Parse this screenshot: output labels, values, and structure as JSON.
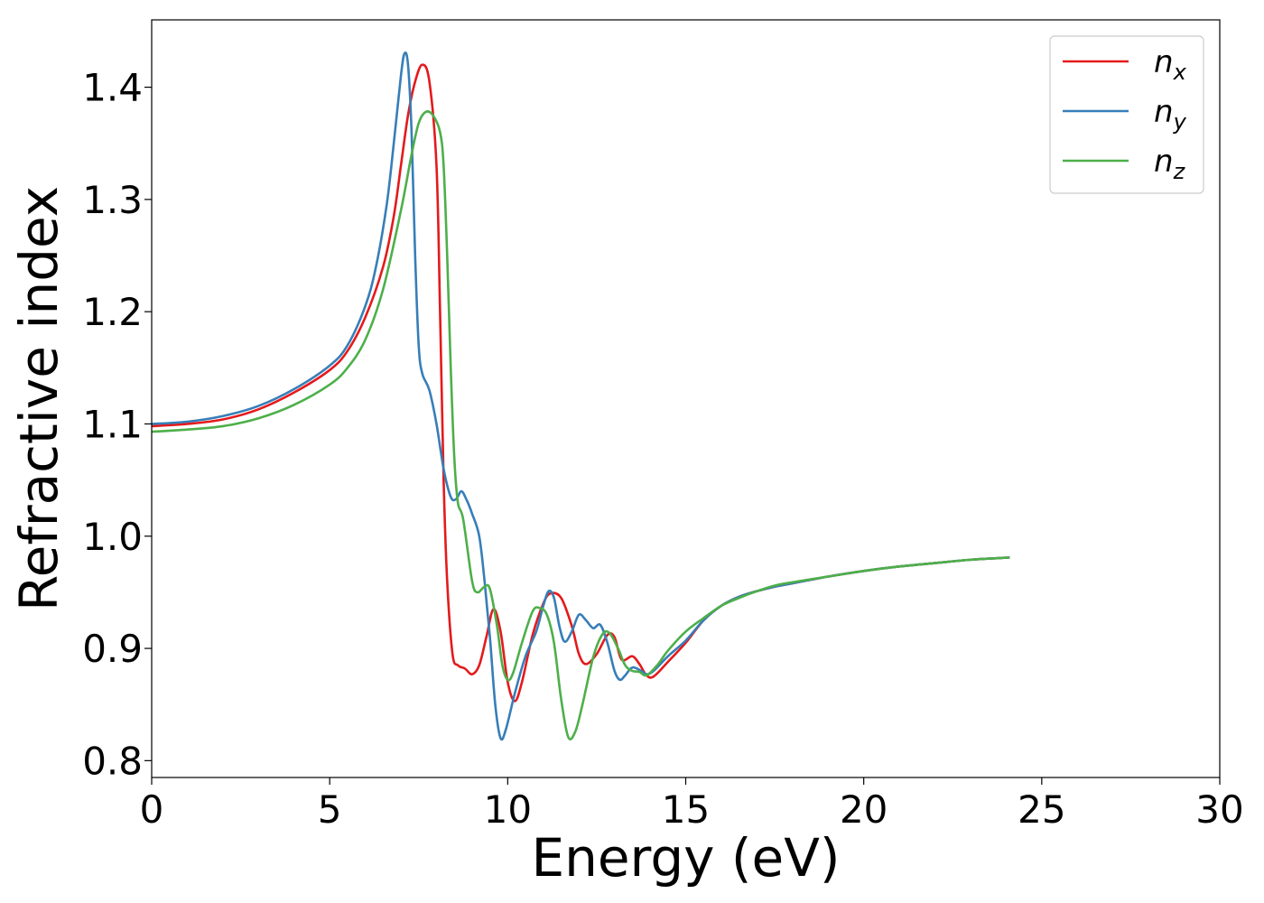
{
  "chart_data": {
    "type": "line",
    "title": "",
    "xlabel": "Energy (eV)",
    "ylabel": "Refractive index",
    "xlim": [
      0,
      30
    ],
    "ylim": [
      0.785,
      1.46
    ],
    "xticks": [
      0,
      5,
      10,
      15,
      20,
      25,
      30
    ],
    "xtick_labels": [
      "0",
      "5",
      "10",
      "15",
      "20",
      "25",
      "30"
    ],
    "yticks": [
      0.8,
      0.9,
      1.0,
      1.1,
      1.2,
      1.3,
      1.4
    ],
    "ytick_labels": [
      "0.8",
      "0.9",
      "1.0",
      "1.1",
      "1.2",
      "1.3",
      "1.4"
    ],
    "grid": false,
    "legend_position": "top-right",
    "series": [
      {
        "name": "n_x",
        "label_main": "n",
        "label_sub": "x",
        "color": "#e41a1c",
        "points": [
          [
            0,
            1.098
          ],
          [
            1,
            1.1
          ],
          [
            2,
            1.104
          ],
          [
            3,
            1.113
          ],
          [
            4,
            1.128
          ],
          [
            5,
            1.148
          ],
          [
            5.5,
            1.165
          ],
          [
            6,
            1.195
          ],
          [
            6.5,
            1.24
          ],
          [
            6.8,
            1.285
          ],
          [
            7.0,
            1.33
          ],
          [
            7.2,
            1.375
          ],
          [
            7.4,
            1.405
          ],
          [
            7.6,
            1.42
          ],
          [
            7.8,
            1.405
          ],
          [
            8.0,
            1.33
          ],
          [
            8.1,
            1.2
          ],
          [
            8.2,
            1.05
          ],
          [
            8.3,
            0.96
          ],
          [
            8.45,
            0.895
          ],
          [
            8.6,
            0.885
          ],
          [
            8.8,
            0.882
          ],
          [
            9.0,
            0.877
          ],
          [
            9.2,
            0.885
          ],
          [
            9.4,
            0.91
          ],
          [
            9.6,
            0.935
          ],
          [
            9.8,
            0.915
          ],
          [
            10.0,
            0.87
          ],
          [
            10.2,
            0.853
          ],
          [
            10.4,
            0.87
          ],
          [
            10.7,
            0.912
          ],
          [
            11.0,
            0.94
          ],
          [
            11.2,
            0.949
          ],
          [
            11.5,
            0.945
          ],
          [
            11.8,
            0.92
          ],
          [
            12.0,
            0.895
          ],
          [
            12.2,
            0.886
          ],
          [
            12.5,
            0.895
          ],
          [
            12.8,
            0.912
          ],
          [
            13.0,
            0.91
          ],
          [
            13.2,
            0.89
          ],
          [
            13.5,
            0.893
          ],
          [
            13.7,
            0.886
          ],
          [
            13.9,
            0.876
          ],
          [
            14.1,
            0.875
          ],
          [
            14.5,
            0.888
          ],
          [
            15,
            0.905
          ],
          [
            15.5,
            0.925
          ],
          [
            16,
            0.938
          ],
          [
            16.5,
            0.946
          ],
          [
            17,
            0.951
          ],
          [
            17.5,
            0.955
          ],
          [
            18,
            0.958
          ],
          [
            19,
            0.964
          ],
          [
            20,
            0.969
          ],
          [
            21,
            0.973
          ],
          [
            22,
            0.976
          ],
          [
            23,
            0.979
          ],
          [
            24.1,
            0.981
          ]
        ]
      },
      {
        "name": "n_y",
        "label_main": "n",
        "label_sub": "y",
        "color": "#377eb8",
        "points": [
          [
            0,
            1.1
          ],
          [
            1,
            1.102
          ],
          [
            2,
            1.107
          ],
          [
            3,
            1.116
          ],
          [
            4,
            1.131
          ],
          [
            5,
            1.152
          ],
          [
            5.5,
            1.17
          ],
          [
            6,
            1.205
          ],
          [
            6.3,
            1.24
          ],
          [
            6.6,
            1.295
          ],
          [
            6.8,
            1.35
          ],
          [
            7.0,
            1.41
          ],
          [
            7.1,
            1.43
          ],
          [
            7.2,
            1.42
          ],
          [
            7.3,
            1.36
          ],
          [
            7.4,
            1.25
          ],
          [
            7.5,
            1.17
          ],
          [
            7.6,
            1.145
          ],
          [
            7.8,
            1.13
          ],
          [
            8.0,
            1.1
          ],
          [
            8.2,
            1.06
          ],
          [
            8.4,
            1.035
          ],
          [
            8.55,
            1.033
          ],
          [
            8.7,
            1.04
          ],
          [
            8.85,
            1.032
          ],
          [
            9.0,
            1.02
          ],
          [
            9.2,
            1.0
          ],
          [
            9.35,
            0.96
          ],
          [
            9.5,
            0.91
          ],
          [
            9.65,
            0.85
          ],
          [
            9.8,
            0.82
          ],
          [
            9.95,
            0.828
          ],
          [
            10.2,
            0.86
          ],
          [
            10.5,
            0.893
          ],
          [
            10.8,
            0.915
          ],
          [
            11.0,
            0.938
          ],
          [
            11.15,
            0.951
          ],
          [
            11.3,
            0.945
          ],
          [
            11.45,
            0.92
          ],
          [
            11.6,
            0.906
          ],
          [
            11.8,
            0.915
          ],
          [
            12.0,
            0.93
          ],
          [
            12.2,
            0.925
          ],
          [
            12.4,
            0.918
          ],
          [
            12.6,
            0.921
          ],
          [
            12.8,
            0.905
          ],
          [
            13.0,
            0.88
          ],
          [
            13.15,
            0.872
          ],
          [
            13.3,
            0.876
          ],
          [
            13.5,
            0.883
          ],
          [
            13.75,
            0.88
          ],
          [
            13.9,
            0.877
          ],
          [
            14.1,
            0.88
          ],
          [
            14.5,
            0.893
          ],
          [
            15,
            0.907
          ],
          [
            15.5,
            0.925
          ],
          [
            16,
            0.938
          ],
          [
            16.5,
            0.946
          ],
          [
            17,
            0.951
          ],
          [
            17.5,
            0.955
          ],
          [
            18,
            0.958
          ],
          [
            19,
            0.964
          ],
          [
            20,
            0.969
          ],
          [
            21,
            0.973
          ],
          [
            22,
            0.976
          ],
          [
            23,
            0.979
          ],
          [
            24.1,
            0.981
          ]
        ]
      },
      {
        "name": "n_z",
        "label_main": "n",
        "label_sub": "z",
        "color": "#4daf4a",
        "points": [
          [
            0,
            1.093
          ],
          [
            1,
            1.095
          ],
          [
            2,
            1.098
          ],
          [
            3,
            1.105
          ],
          [
            4,
            1.117
          ],
          [
            5,
            1.135
          ],
          [
            5.5,
            1.15
          ],
          [
            6,
            1.175
          ],
          [
            6.5,
            1.22
          ],
          [
            7.0,
            1.29
          ],
          [
            7.3,
            1.34
          ],
          [
            7.5,
            1.368
          ],
          [
            7.7,
            1.378
          ],
          [
            7.9,
            1.375
          ],
          [
            8.1,
            1.36
          ],
          [
            8.2,
            1.33
          ],
          [
            8.3,
            1.25
          ],
          [
            8.4,
            1.15
          ],
          [
            8.5,
            1.07
          ],
          [
            8.6,
            1.03
          ],
          [
            8.75,
            1.015
          ],
          [
            9.0,
            0.96
          ],
          [
            9.15,
            0.95
          ],
          [
            9.35,
            0.955
          ],
          [
            9.5,
            0.953
          ],
          [
            9.7,
            0.92
          ],
          [
            9.85,
            0.885
          ],
          [
            10.0,
            0.872
          ],
          [
            10.15,
            0.878
          ],
          [
            10.4,
            0.905
          ],
          [
            10.7,
            0.933
          ],
          [
            10.9,
            0.936
          ],
          [
            11.1,
            0.93
          ],
          [
            11.3,
            0.905
          ],
          [
            11.5,
            0.855
          ],
          [
            11.7,
            0.821
          ],
          [
            11.9,
            0.826
          ],
          [
            12.1,
            0.85
          ],
          [
            12.4,
            0.892
          ],
          [
            12.65,
            0.912
          ],
          [
            12.85,
            0.914
          ],
          [
            13.1,
            0.9
          ],
          [
            13.3,
            0.885
          ],
          [
            13.5,
            0.88
          ],
          [
            13.7,
            0.879
          ],
          [
            13.9,
            0.876
          ],
          [
            14.2,
            0.885
          ],
          [
            14.5,
            0.898
          ],
          [
            15,
            0.915
          ],
          [
            15.5,
            0.927
          ],
          [
            16,
            0.938
          ],
          [
            16.5,
            0.945
          ],
          [
            17,
            0.951
          ],
          [
            17.5,
            0.956
          ],
          [
            18,
            0.959
          ],
          [
            19,
            0.964
          ],
          [
            20,
            0.969
          ],
          [
            21,
            0.973
          ],
          [
            22,
            0.976
          ],
          [
            23,
            0.979
          ],
          [
            24.1,
            0.981
          ]
        ]
      }
    ]
  }
}
